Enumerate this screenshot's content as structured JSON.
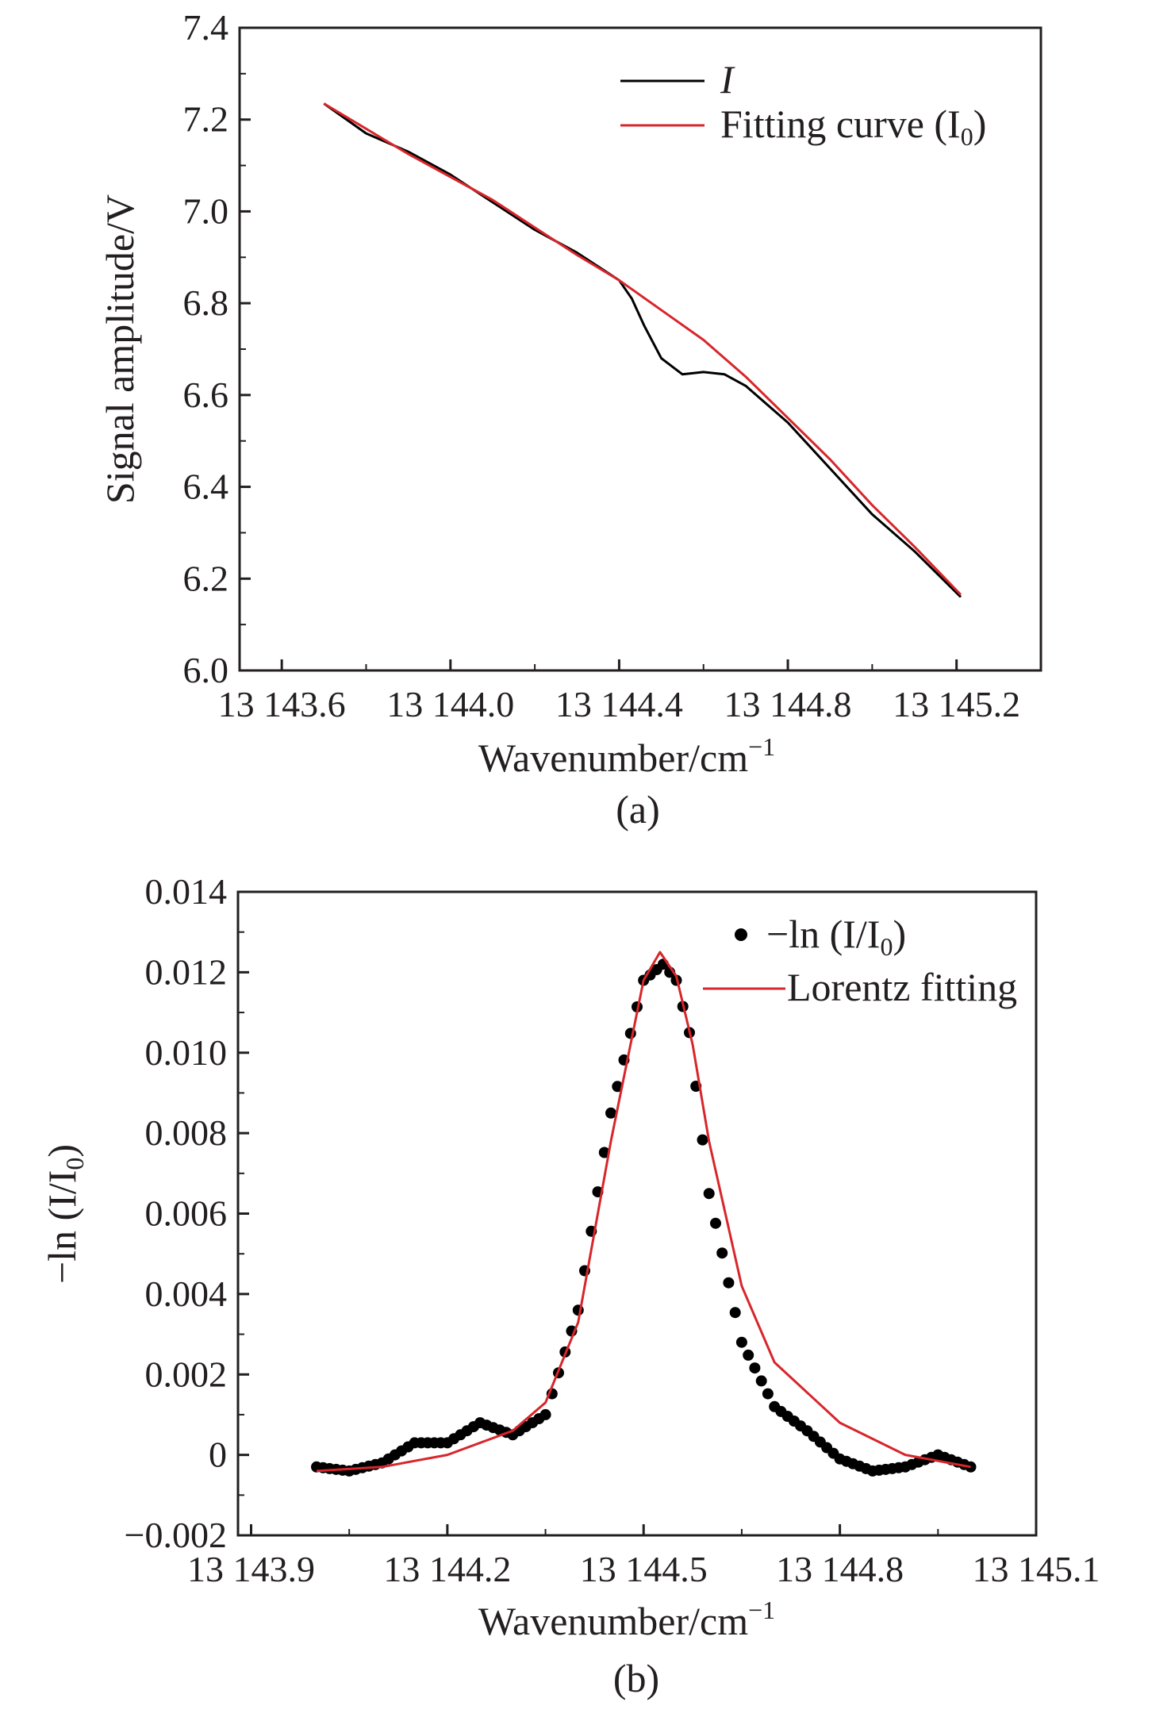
{
  "chart_data": [
    {
      "type": "line",
      "panel_label": "(a)",
      "xlabel": "Wavenumber/cm",
      "xlabel_sup": "−1",
      "ylabel": "Signal amplitude/V",
      "xlim": [
        13143.5,
        13145.4
      ],
      "ylim": [
        6.0,
        7.4
      ],
      "x_ticks": [
        13143.6,
        13144.0,
        13144.4,
        13144.8,
        13145.2
      ],
      "x_tick_labels": [
        "13 143.6",
        "13 144.0",
        "13 144.4",
        "13 144.8",
        "13 145.2"
      ],
      "y_ticks": [
        6.0,
        6.2,
        6.4,
        6.6,
        6.8,
        7.0,
        7.2,
        7.4
      ],
      "y_tick_labels": [
        "6.0",
        "6.2",
        "6.4",
        "6.6",
        "6.8",
        "7.0",
        "7.2",
        "7.4"
      ],
      "legend_position": "top-right",
      "series": [
        {
          "name": "I",
          "color": "#000000",
          "style": "line",
          "x": [
            13143.7,
            13143.8,
            13143.9,
            13144.0,
            13144.1,
            13144.2,
            13144.3,
            13144.4,
            13144.43,
            13144.46,
            13144.5,
            13144.55,
            13144.6,
            13144.65,
            13144.7,
            13144.8,
            13144.9,
            13145.0,
            13145.1,
            13145.21
          ],
          "y": [
            7.235,
            7.17,
            7.13,
            7.08,
            7.02,
            6.96,
            6.91,
            6.85,
            6.81,
            6.75,
            6.68,
            6.645,
            6.65,
            6.645,
            6.62,
            6.54,
            6.44,
            6.34,
            6.26,
            6.16
          ]
        },
        {
          "name": "Fitting curve (I0)",
          "color": "#d7262b",
          "style": "line",
          "x": [
            13143.7,
            13143.8,
            13143.9,
            13144.0,
            13144.1,
            13144.2,
            13144.3,
            13144.4,
            13144.5,
            13144.6,
            13144.7,
            13144.8,
            13144.9,
            13145.0,
            13145.1,
            13145.21
          ],
          "y": [
            7.235,
            7.18,
            7.125,
            7.075,
            7.025,
            6.965,
            6.905,
            6.85,
            6.785,
            6.72,
            6.64,
            6.55,
            6.46,
            6.36,
            6.27,
            6.165
          ]
        }
      ],
      "legend": [
        {
          "label": "I",
          "sub": ""
        },
        {
          "label": "Fitting curve (I",
          "sub": "0",
          "suffix": ")"
        }
      ]
    },
    {
      "type": "scatter",
      "panel_label": "(b)",
      "xlabel": "Wavenumber/cm",
      "xlabel_sup": "−1",
      "ylabel": "−ln (I/I0)",
      "xlim": [
        13143.88,
        13145.1
      ],
      "ylim": [
        -0.002,
        0.014
      ],
      "x_ticks": [
        13143.9,
        13144.2,
        13144.5,
        13144.8,
        13145.1
      ],
      "x_tick_labels": [
        "13 143.9",
        "13 144.2",
        "13 144.5",
        "13 144.8",
        "13 145.1"
      ],
      "y_ticks": [
        -0.002,
        0,
        0.002,
        0.004,
        0.006,
        0.008,
        0.01,
        0.012,
        0.014
      ],
      "y_tick_labels": [
        "−0.002",
        "0",
        "0.002",
        "0.004",
        "0.006",
        "0.008",
        "0.010",
        "0.012",
        "0.014"
      ],
      "legend_position": "top-right",
      "series": [
        {
          "name": "−ln (I/I0)",
          "color": "#000000",
          "style": "dots",
          "x": [
            13144.0,
            13144.05,
            13144.1,
            13144.15,
            13144.2,
            13144.25,
            13144.3,
            13144.35,
            13144.4,
            13144.45,
            13144.5,
            13144.53,
            13144.55,
            13144.57,
            13144.6,
            13144.65,
            13144.7,
            13144.75,
            13144.8,
            13144.85,
            13144.9,
            13144.95,
            13145.0
          ],
          "y": [
            -0.0003,
            -0.0004,
            -0.0002,
            0.0003,
            0.0003,
            0.0008,
            0.0005,
            0.001,
            0.0036,
            0.0085,
            0.0118,
            0.0122,
            0.0118,
            0.0105,
            0.0065,
            0.0028,
            0.0012,
            0.0006,
            -0.0001,
            -0.0004,
            -0.0003,
            0.0,
            -0.0003
          ]
        },
        {
          "name": "Lorentz fitting",
          "color": "#d7262b",
          "style": "line",
          "x": [
            13144.0,
            13144.1,
            13144.2,
            13144.3,
            13144.35,
            13144.4,
            13144.45,
            13144.5,
            13144.525,
            13144.55,
            13144.575,
            13144.6,
            13144.65,
            13144.7,
            13144.8,
            13144.9,
            13145.0
          ],
          "y": [
            -0.0004,
            -0.0003,
            0.0,
            0.0006,
            0.0013,
            0.0033,
            0.0078,
            0.0118,
            0.0125,
            0.0119,
            0.0102,
            0.0078,
            0.0042,
            0.0023,
            0.0008,
            0.0,
            -0.0003
          ]
        }
      ],
      "legend": [
        {
          "label": "−ln (I/I",
          "sub": "0",
          "suffix": ")"
        },
        {
          "label": "Lorentz fitting",
          "sub": "",
          "suffix": ""
        }
      ]
    }
  ]
}
